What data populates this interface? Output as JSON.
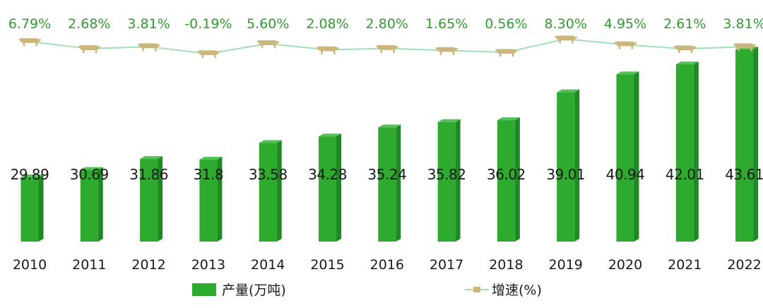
{
  "colors": {
    "bar_front": "#2eaa2e",
    "bar_side": "#1f8a24",
    "bar_top": "#55c255",
    "line": "#9fe0b4",
    "rate_text": "#2e9e2e",
    "cow": "#cbb67c"
  },
  "icons": {
    "line_marker": "cow-icon"
  },
  "legend": {
    "bar_label": "产量(万吨)",
    "line_label": "增速(%)"
  },
  "chart_data": {
    "type": "bar",
    "categories": [
      "2010",
      "2011",
      "2012",
      "2013",
      "2014",
      "2015",
      "2016",
      "2017",
      "2018",
      "2019",
      "2020",
      "2021",
      "2022"
    ],
    "series": [
      {
        "name": "产量(万吨)",
        "type": "bar",
        "values": [
          29.89,
          30.69,
          31.86,
          31.8,
          33.58,
          34.28,
          35.24,
          35.82,
          36.02,
          39.01,
          40.94,
          42.01,
          43.61
        ],
        "labels": [
          "29.89",
          "30.69",
          "31.86",
          "31.8",
          "33.58",
          "34.28",
          "35.24",
          "35.82",
          "36.02",
          "39.01",
          "40.94",
          "42.01",
          "43.61"
        ]
      },
      {
        "name": "增速(%)",
        "type": "line",
        "values": [
          6.79,
          2.68,
          3.81,
          -0.19,
          5.6,
          2.08,
          2.8,
          1.65,
          0.56,
          8.3,
          4.95,
          2.61,
          3.81
        ],
        "labels": [
          "6.79%",
          "2.68%",
          "3.81%",
          "-0.19%",
          "5.60%",
          "2.08%",
          "2.80%",
          "1.65%",
          "0.56%",
          "8.30%",
          "4.95%",
          "2.61%",
          "3.81%"
        ]
      }
    ],
    "legend_position": "bottom",
    "grid": false
  }
}
